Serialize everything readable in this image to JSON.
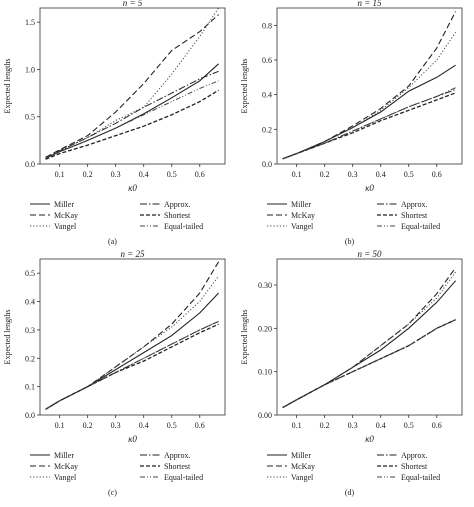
{
  "figure": {
    "captions": [
      "(a)",
      "(b)",
      "(c)",
      "(d)"
    ]
  },
  "legend_labels": {
    "miller": "Miller",
    "mckay": "McKay",
    "vangel": "Vangel",
    "approx": "Approx.",
    "shortest": "Shortest",
    "equal": "Equal-tailed"
  },
  "chart_data": [
    {
      "type": "line",
      "title": "n = 5",
      "xlabel": "κ0",
      "ylabel": "Expected lengths",
      "xlim": [
        0.03,
        0.69
      ],
      "ylim": [
        0,
        1.65
      ],
      "xticks": [
        0.1,
        0.2,
        0.3,
        0.4,
        0.5,
        0.6
      ],
      "yticks": [
        0.0,
        0.5,
        1.0,
        1.5
      ],
      "ytick_labels": [
        "0.0",
        "0.5",
        "1.0",
        "1.5"
      ],
      "grid": false,
      "legend_position": "below plot",
      "x": [
        0.05,
        0.1,
        0.2,
        0.3,
        0.4,
        0.5,
        0.6,
        0.667
      ],
      "series": [
        {
          "name": "Miller",
          "values": [
            0.06,
            0.13,
            0.25,
            0.38,
            0.53,
            0.7,
            0.88,
            1.06
          ]
        },
        {
          "name": "McKay",
          "values": [
            0.07,
            0.15,
            0.3,
            0.55,
            0.85,
            1.2,
            1.4,
            1.58
          ]
        },
        {
          "name": "Vangel",
          "values": [
            0.06,
            0.14,
            0.28,
            0.46,
            0.6,
            0.95,
            1.35,
            1.65
          ]
        },
        {
          "name": "Approx.",
          "values": [
            0.06,
            0.14,
            0.28,
            0.43,
            0.6,
            0.75,
            0.9,
            0.98
          ]
        },
        {
          "name": "Shortest",
          "values": [
            0.05,
            0.11,
            0.2,
            0.3,
            0.4,
            0.52,
            0.66,
            0.78
          ]
        },
        {
          "name": "Equal-tailed",
          "values": [
            0.06,
            0.13,
            0.25,
            0.38,
            0.52,
            0.66,
            0.8,
            0.88
          ]
        }
      ]
    },
    {
      "type": "line",
      "title": "n = 15",
      "xlabel": "κ0",
      "ylabel": "Expected lengths",
      "xlim": [
        0.03,
        0.69
      ],
      "ylim": [
        0,
        0.9
      ],
      "xticks": [
        0.1,
        0.2,
        0.3,
        0.4,
        0.5,
        0.6
      ],
      "yticks": [
        0.0,
        0.2,
        0.4,
        0.6,
        0.8
      ],
      "ytick_labels": [
        "0.0",
        "0.2",
        "0.4",
        "0.6",
        "0.8"
      ],
      "grid": false,
      "legend_position": "below plot",
      "x": [
        0.05,
        0.1,
        0.2,
        0.3,
        0.4,
        0.5,
        0.6,
        0.667
      ],
      "series": [
        {
          "name": "Miller",
          "values": [
            0.03,
            0.06,
            0.13,
            0.21,
            0.3,
            0.42,
            0.5,
            0.57
          ]
        },
        {
          "name": "McKay",
          "values": [
            0.03,
            0.06,
            0.13,
            0.22,
            0.32,
            0.45,
            0.67,
            0.88
          ]
        },
        {
          "name": "Vangel",
          "values": [
            0.03,
            0.06,
            0.13,
            0.21,
            0.31,
            0.44,
            0.6,
            0.76
          ]
        },
        {
          "name": "Approx.",
          "values": [
            0.03,
            0.06,
            0.12,
            0.19,
            0.26,
            0.33,
            0.39,
            0.43
          ]
        },
        {
          "name": "Shortest",
          "values": [
            0.03,
            0.06,
            0.12,
            0.18,
            0.25,
            0.31,
            0.37,
            0.41
          ]
        },
        {
          "name": "Equal-tailed",
          "values": [
            0.03,
            0.06,
            0.12,
            0.19,
            0.26,
            0.33,
            0.39,
            0.44
          ]
        }
      ]
    },
    {
      "type": "line",
      "title": "n = 25",
      "xlabel": "κ0",
      "ylabel": "Expected lengths",
      "xlim": [
        0.03,
        0.69
      ],
      "ylim": [
        0,
        0.55
      ],
      "xticks": [
        0.1,
        0.2,
        0.3,
        0.4,
        0.5,
        0.6
      ],
      "yticks": [
        0.0,
        0.1,
        0.2,
        0.3,
        0.4,
        0.5
      ],
      "ytick_labels": [
        "0.0",
        "0.1",
        "0.2",
        "0.3",
        "0.4",
        "0.5"
      ],
      "grid": false,
      "legend_position": "below plot",
      "x": [
        0.05,
        0.1,
        0.2,
        0.3,
        0.4,
        0.5,
        0.6,
        0.667
      ],
      "series": [
        {
          "name": "Miller",
          "values": [
            0.02,
            0.05,
            0.1,
            0.16,
            0.22,
            0.28,
            0.36,
            0.43
          ]
        },
        {
          "name": "McKay",
          "values": [
            0.02,
            0.05,
            0.1,
            0.17,
            0.24,
            0.32,
            0.43,
            0.54
          ]
        },
        {
          "name": "Vangel",
          "values": [
            0.02,
            0.05,
            0.1,
            0.17,
            0.24,
            0.31,
            0.4,
            0.49
          ]
        },
        {
          "name": "Approx.",
          "values": [
            0.02,
            0.05,
            0.1,
            0.15,
            0.2,
            0.25,
            0.3,
            0.33
          ]
        },
        {
          "name": "Shortest",
          "values": [
            0.02,
            0.05,
            0.1,
            0.15,
            0.19,
            0.24,
            0.29,
            0.32
          ]
        },
        {
          "name": "Equal-tailed",
          "values": [
            0.02,
            0.05,
            0.1,
            0.15,
            0.2,
            0.25,
            0.3,
            0.33
          ]
        }
      ]
    },
    {
      "type": "line",
      "title": "n = 50",
      "xlabel": "κ0",
      "ylabel": "Expected lengths",
      "xlim": [
        0.03,
        0.69
      ],
      "ylim": [
        0,
        0.36
      ],
      "xticks": [
        0.1,
        0.2,
        0.3,
        0.4,
        0.5,
        0.6
      ],
      "yticks": [
        0.0,
        0.1,
        0.2,
        0.3
      ],
      "ytick_labels": [
        "0.00",
        "0.10",
        "0.20",
        "0.30"
      ],
      "grid": false,
      "legend_position": "below plot",
      "x": [
        0.05,
        0.1,
        0.2,
        0.3,
        0.4,
        0.5,
        0.6,
        0.667
      ],
      "series": [
        {
          "name": "Miller",
          "values": [
            0.017,
            0.035,
            0.07,
            0.11,
            0.15,
            0.2,
            0.26,
            0.31
          ]
        },
        {
          "name": "McKay",
          "values": [
            0.017,
            0.035,
            0.07,
            0.11,
            0.16,
            0.21,
            0.28,
            0.34
          ]
        },
        {
          "name": "Vangel",
          "values": [
            0.017,
            0.035,
            0.07,
            0.11,
            0.16,
            0.21,
            0.27,
            0.33
          ]
        },
        {
          "name": "Approx.",
          "values": [
            0.017,
            0.035,
            0.07,
            0.1,
            0.13,
            0.16,
            0.2,
            0.22
          ]
        },
        {
          "name": "Shortest",
          "values": [
            0.017,
            0.035,
            0.07,
            0.1,
            0.13,
            0.16,
            0.2,
            0.22
          ]
        },
        {
          "name": "Equal-tailed",
          "values": [
            0.017,
            0.035,
            0.07,
            0.1,
            0.13,
            0.16,
            0.2,
            0.22
          ]
        }
      ]
    }
  ]
}
